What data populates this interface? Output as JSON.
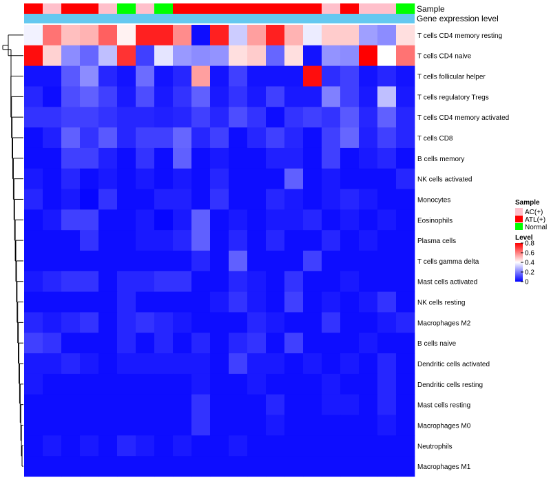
{
  "chart_data": {
    "type": "heatmap",
    "title": "",
    "annotations": {
      "sample_track_label": "Sample",
      "level_track_label": "Gene expression level"
    },
    "sample_groups": [
      "ATL(+)",
      "AC(+)",
      "ATL(+)",
      "ATL(+)",
      "AC(+)",
      "Normal",
      "AC(+)",
      "Normal",
      "ATL(+)",
      "ATL(+)",
      "ATL(+)",
      "ATL(+)",
      "ATL(+)",
      "ATL(+)",
      "ATL(+)",
      "ATL(+)",
      "AC(+)",
      "ATL(+)",
      "AC(+)",
      "AC(+)",
      "Normal"
    ],
    "rows": [
      "T cells CD4 memory resting",
      "T cells CD4 naive",
      "T cells follicular helper",
      "T cells regulatory  Tregs",
      "T cells CD4 memory activated",
      "T cells CD8",
      "B cells memory",
      "NK cells activated",
      "Monocytes",
      "Eosinophils",
      "Plasma cells",
      "T cells gamma delta",
      "Mast cells activated",
      "NK cells resting",
      "Macrophages M2",
      "B cells naive",
      "Dendritic cells activated",
      "Dendritic cells resting",
      "Mast cells resting",
      "Macrophages M0",
      "Neutrophils",
      "Macrophages M1"
    ],
    "values": [
      [
        0.38,
        0.62,
        0.5,
        0.52,
        0.65,
        0.42,
        0.75,
        0.75,
        0.58,
        0.02,
        0.75,
        0.32,
        0.55,
        0.75,
        0.52,
        0.37,
        0.48,
        0.48,
        0.25,
        0.22,
        0.45
      ],
      [
        0.78,
        0.47,
        0.22,
        0.16,
        0.3,
        0.72,
        0.1,
        0.36,
        0.24,
        0.22,
        0.23,
        0.45,
        0.48,
        0.16,
        0.45,
        0.03,
        0.23,
        0.22,
        0.8,
        0.4,
        0.62
      ],
      [
        0.03,
        0.03,
        0.14,
        0.22,
        0.06,
        0.03,
        0.17,
        0.03,
        0.06,
        0.55,
        0.03,
        0.1,
        0.03,
        0.03,
        0.03,
        0.78,
        0.07,
        0.1,
        0.03,
        0.06,
        0.03
      ],
      [
        0.06,
        0.02,
        0.12,
        0.15,
        0.1,
        0.04,
        0.12,
        0.04,
        0.08,
        0.15,
        0.04,
        0.08,
        0.04,
        0.1,
        0.04,
        0.04,
        0.2,
        0.1,
        0.04,
        0.3,
        0.04
      ],
      [
        0.08,
        0.08,
        0.1,
        0.1,
        0.08,
        0.06,
        0.06,
        0.05,
        0.06,
        0.1,
        0.06,
        0.12,
        0.08,
        0.02,
        0.08,
        0.1,
        0.08,
        0.14,
        0.06,
        0.15,
        0.06
      ],
      [
        0.02,
        0.05,
        0.15,
        0.08,
        0.14,
        0.06,
        0.1,
        0.1,
        0.16,
        0.06,
        0.1,
        0.02,
        0.06,
        0.1,
        0.06,
        0.02,
        0.1,
        0.16,
        0.05,
        0.1,
        0.06
      ],
      [
        0.02,
        0.02,
        0.1,
        0.1,
        0.05,
        0.02,
        0.08,
        0.02,
        0.15,
        0.02,
        0.04,
        0.02,
        0.02,
        0.05,
        0.05,
        0.02,
        0.1,
        0.02,
        0.04,
        0.06,
        0.02
      ],
      [
        0.04,
        0.02,
        0.06,
        0.02,
        0.04,
        0.02,
        0.04,
        0.02,
        0.04,
        0.02,
        0.06,
        0.02,
        0.02,
        0.02,
        0.15,
        0.02,
        0.04,
        0.02,
        0.02,
        0.02,
        0.06
      ],
      [
        0.06,
        0.02,
        0.04,
        0.01,
        0.08,
        0.02,
        0.02,
        0.05,
        0.05,
        0.02,
        0.08,
        0.02,
        0.02,
        0.06,
        0.04,
        0.02,
        0.04,
        0.06,
        0.04,
        0.02,
        0.02
      ],
      [
        0.02,
        0.04,
        0.1,
        0.1,
        0.02,
        0.02,
        0.04,
        0.01,
        0.04,
        0.15,
        0.02,
        0.04,
        0.02,
        0.04,
        0.04,
        0.06,
        0.02,
        0.04,
        0.02,
        0.04,
        0.02
      ],
      [
        0.02,
        0.02,
        0.02,
        0.08,
        0.02,
        0.02,
        0.04,
        0.04,
        0.06,
        0.15,
        0.02,
        0.06,
        0.02,
        0.06,
        0.02,
        0.02,
        0.06,
        0.02,
        0.04,
        0.02,
        0.02
      ],
      [
        0.02,
        0.02,
        0.02,
        0.02,
        0.02,
        0.02,
        0.02,
        0.02,
        0.02,
        0.06,
        0.02,
        0.15,
        0.02,
        0.02,
        0.02,
        0.1,
        0.02,
        0.02,
        0.02,
        0.02,
        0.02
      ],
      [
        0.04,
        0.06,
        0.08,
        0.08,
        0.02,
        0.06,
        0.06,
        0.08,
        0.08,
        0.02,
        0.02,
        0.06,
        0.04,
        0.02,
        0.08,
        0.02,
        0.02,
        0.04,
        0.02,
        0.02,
        0.02
      ],
      [
        0.02,
        0.02,
        0.02,
        0.02,
        0.02,
        0.06,
        0.02,
        0.02,
        0.02,
        0.02,
        0.04,
        0.08,
        0.04,
        0.02,
        0.1,
        0.02,
        0.04,
        0.02,
        0.04,
        0.08,
        0.02
      ],
      [
        0.06,
        0.04,
        0.06,
        0.08,
        0.02,
        0.06,
        0.08,
        0.06,
        0.04,
        0.02,
        0.02,
        0.02,
        0.06,
        0.04,
        0.02,
        0.02,
        0.08,
        0.02,
        0.02,
        0.04,
        0.06
      ],
      [
        0.1,
        0.08,
        0.02,
        0.02,
        0.02,
        0.06,
        0.02,
        0.06,
        0.02,
        0.06,
        0.02,
        0.06,
        0.08,
        0.02,
        0.1,
        0.02,
        0.02,
        0.02,
        0.04,
        0.02,
        0.02
      ],
      [
        0.04,
        0.04,
        0.06,
        0.04,
        0.02,
        0.04,
        0.04,
        0.04,
        0.04,
        0.04,
        0.02,
        0.1,
        0.04,
        0.04,
        0.02,
        0.04,
        0.02,
        0.04,
        0.02,
        0.06,
        0.02
      ],
      [
        0.04,
        0.02,
        0.02,
        0.02,
        0.02,
        0.02,
        0.02,
        0.02,
        0.02,
        0.04,
        0.02,
        0.02,
        0.04,
        0.02,
        0.02,
        0.02,
        0.04,
        0.02,
        0.02,
        0.06,
        0.02
      ],
      [
        0.02,
        0.02,
        0.02,
        0.02,
        0.02,
        0.02,
        0.02,
        0.02,
        0.02,
        0.08,
        0.02,
        0.02,
        0.02,
        0.06,
        0.02,
        0.02,
        0.04,
        0.04,
        0.02,
        0.06,
        0.02
      ],
      [
        0.02,
        0.02,
        0.02,
        0.02,
        0.02,
        0.02,
        0.02,
        0.02,
        0.02,
        0.08,
        0.02,
        0.02,
        0.02,
        0.04,
        0.02,
        0.02,
        0.02,
        0.02,
        0.02,
        0.04,
        0.02
      ],
      [
        0.02,
        0.04,
        0.02,
        0.04,
        0.02,
        0.06,
        0.04,
        0.02,
        0.04,
        0.02,
        0.02,
        0.04,
        0.02,
        0.02,
        0.02,
        0.02,
        0.02,
        0.02,
        0.02,
        0.02,
        0.02
      ],
      [
        0.02,
        0.02,
        0.02,
        0.02,
        0.02,
        0.02,
        0.02,
        0.02,
        0.02,
        0.02,
        0.02,
        0.02,
        0.02,
        0.02,
        0.02,
        0.02,
        0.02,
        0.02,
        0.02,
        0.02,
        0.02
      ]
    ],
    "legend": {
      "sample": {
        "title": "Sample",
        "entries": [
          {
            "label": "AC(+)",
            "color": "#FFC0CB"
          },
          {
            "label": "ATL(+)",
            "color": "#FF0000"
          },
          {
            "label": "Normal",
            "color": "#00FF00"
          }
        ]
      },
      "level": {
        "title": "Level",
        "ticks": [
          "0.8",
          "0.6",
          "0.4",
          "0.2",
          "0"
        ],
        "tick_values": [
          0.8,
          0.6,
          0.4,
          0.2,
          0
        ],
        "range": [
          0,
          0.8
        ]
      },
      "placement": "right"
    },
    "colors": {
      "low": "#0000FF",
      "mid": "#FFFFFF",
      "high": "#FF0000",
      "level_track": "#64C8F0"
    }
  }
}
